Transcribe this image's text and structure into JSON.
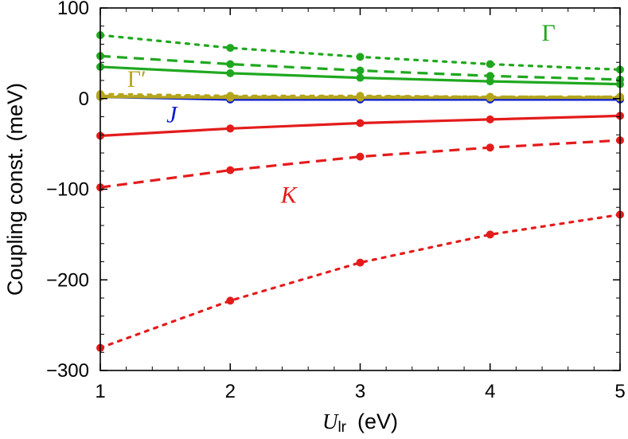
{
  "chart_data": {
    "type": "line",
    "x": [
      1,
      2,
      3,
      4,
      5
    ],
    "xlim": [
      1,
      5
    ],
    "ylim": [
      -300,
      100
    ],
    "x_ticks": [
      "1",
      "2",
      "3",
      "4",
      "5"
    ],
    "y_ticks": [
      "100",
      "0",
      "−100",
      "−200",
      "−300"
    ],
    "y_tick_values": [
      100,
      0,
      -100,
      -200,
      -300
    ],
    "xlabel": {
      "symbol": "U",
      "subscript": "lr",
      "unit": "(eV)"
    },
    "ylabel": "Coupling const. (meV)",
    "grid": false,
    "annotations": [
      {
        "text": "Γ",
        "color": "#1fa81f",
        "x": 4.45,
        "y": 64
      },
      {
        "text": "Γ′",
        "color": "#b5a51c",
        "x": 1.28,
        "y": 13
      },
      {
        "text": "J",
        "color": "#0a1ed0",
        "x": 1.55,
        "y": -26
      },
      {
        "text": "K",
        "color": "#e41b1b",
        "x": 2.45,
        "y": -115
      }
    ],
    "series": [
      {
        "group": "Γ",
        "style": "dotted",
        "color": "#1fa81f",
        "values": [
          70,
          56,
          46,
          38,
          32
        ]
      },
      {
        "group": "Γ",
        "style": "dashed",
        "color": "#1fa81f",
        "values": [
          47,
          38,
          31,
          25,
          21
        ]
      },
      {
        "group": "Γ",
        "style": "solid",
        "color": "#1fa81f",
        "values": [
          35,
          28,
          23,
          19,
          16
        ]
      },
      {
        "group": "J",
        "style": "solid",
        "color": "#0a1ed0",
        "values": [
          2,
          -1,
          -1,
          -1,
          -1
        ]
      },
      {
        "group": "Γ′",
        "style": "solid",
        "color": "#b5a51c",
        "values": [
          2,
          1,
          1,
          1,
          1
        ]
      },
      {
        "group": "Γ′",
        "style": "dashed",
        "color": "#b5a51c",
        "values": [
          3,
          2,
          2,
          2,
          2
        ]
      },
      {
        "group": "Γ′",
        "style": "dotted",
        "color": "#b5a51c",
        "values": [
          5,
          3,
          3,
          2,
          2
        ]
      },
      {
        "group": "K",
        "style": "solid",
        "color": "#e41b1b",
        "values": [
          -41,
          -33,
          -27,
          -23,
          -19
        ]
      },
      {
        "group": "K",
        "style": "dashed",
        "color": "#e41b1b",
        "values": [
          -98,
          -79,
          -64,
          -54,
          -46
        ]
      },
      {
        "group": "K",
        "style": "dotted",
        "color": "#e41b1b",
        "values": [
          -275,
          -223,
          -181,
          -150,
          -128
        ]
      }
    ]
  }
}
